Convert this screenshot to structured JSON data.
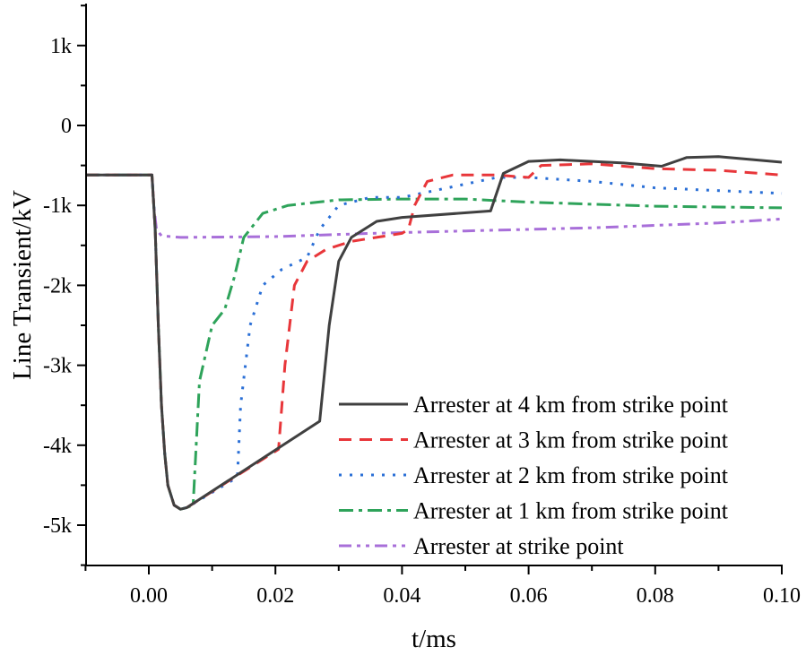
{
  "chart_data": {
    "type": "line",
    "title": "",
    "xlabel": "t/ms",
    "ylabel": "Line Transient/kV",
    "xlim": [
      -0.01,
      0.1
    ],
    "ylim": [
      -5500,
      1550
    ],
    "x_ticks": [
      0.0,
      0.02,
      0.04,
      0.06,
      0.08,
      0.1
    ],
    "x_tick_labels": [
      "0.00",
      "0.02",
      "0.04",
      "0.06",
      "0.08",
      "0.10"
    ],
    "y_ticks": [
      1000,
      0,
      -1000,
      -2000,
      -3000,
      -4000,
      -5000
    ],
    "y_tick_labels": [
      "1k",
      "0",
      "-1k",
      "-2k",
      "-3k",
      "-4k",
      "-5k"
    ],
    "grid": false,
    "legend_position": "bottom-right",
    "series": [
      {
        "name": "Arrester at 4 km from strike point",
        "color": "#404040",
        "dash": "solid",
        "points": [
          [
            -0.01,
            -620
          ],
          [
            0.0005,
            -620
          ],
          [
            0.001,
            -1300
          ],
          [
            0.0015,
            -2500
          ],
          [
            0.002,
            -3500
          ],
          [
            0.0025,
            -4100
          ],
          [
            0.003,
            -4500
          ],
          [
            0.004,
            -4750
          ],
          [
            0.005,
            -4800
          ],
          [
            0.006,
            -4780
          ],
          [
            0.027,
            -3700
          ],
          [
            0.0285,
            -2500
          ],
          [
            0.03,
            -1700
          ],
          [
            0.032,
            -1400
          ],
          [
            0.036,
            -1200
          ],
          [
            0.04,
            -1150
          ],
          [
            0.054,
            -1070
          ],
          [
            0.056,
            -600
          ],
          [
            0.06,
            -450
          ],
          [
            0.065,
            -430
          ],
          [
            0.075,
            -470
          ],
          [
            0.081,
            -510
          ],
          [
            0.085,
            -400
          ],
          [
            0.09,
            -390
          ],
          [
            0.1,
            -460
          ]
        ]
      },
      {
        "name": "Arrester at 3 km from strike point",
        "color": "#e8363a",
        "dash": "14,9",
        "points": [
          [
            -0.01,
            -620
          ],
          [
            0.0005,
            -620
          ],
          [
            0.001,
            -1300
          ],
          [
            0.0015,
            -2500
          ],
          [
            0.002,
            -3500
          ],
          [
            0.0025,
            -4100
          ],
          [
            0.003,
            -4500
          ],
          [
            0.004,
            -4750
          ],
          [
            0.005,
            -4800
          ],
          [
            0.006,
            -4780
          ],
          [
            0.0205,
            -4050
          ],
          [
            0.0215,
            -3000
          ],
          [
            0.023,
            -2000
          ],
          [
            0.025,
            -1700
          ],
          [
            0.028,
            -1550
          ],
          [
            0.032,
            -1450
          ],
          [
            0.04,
            -1350
          ],
          [
            0.041,
            -1300
          ],
          [
            0.042,
            -1000
          ],
          [
            0.044,
            -700
          ],
          [
            0.048,
            -620
          ],
          [
            0.055,
            -620
          ],
          [
            0.06,
            -650
          ],
          [
            0.062,
            -500
          ],
          [
            0.07,
            -480
          ],
          [
            0.08,
            -540
          ],
          [
            0.09,
            -560
          ],
          [
            0.1,
            -620
          ]
        ]
      },
      {
        "name": "Arrester at 2 km from strike point",
        "color": "#2a6fd6",
        "dash": "3,9",
        "points": [
          [
            -0.01,
            -620
          ],
          [
            0.0005,
            -620
          ],
          [
            0.001,
            -1300
          ],
          [
            0.0015,
            -2500
          ],
          [
            0.002,
            -3500
          ],
          [
            0.0025,
            -4100
          ],
          [
            0.003,
            -4500
          ],
          [
            0.004,
            -4750
          ],
          [
            0.005,
            -4800
          ],
          [
            0.006,
            -4780
          ],
          [
            0.014,
            -4400
          ],
          [
            0.0145,
            -3500
          ],
          [
            0.016,
            -2500
          ],
          [
            0.018,
            -2000
          ],
          [
            0.021,
            -1800
          ],
          [
            0.025,
            -1650
          ],
          [
            0.027,
            -1300
          ],
          [
            0.03,
            -1000
          ],
          [
            0.035,
            -900
          ],
          [
            0.04,
            -900
          ],
          [
            0.055,
            -650
          ],
          [
            0.06,
            -650
          ],
          [
            0.07,
            -700
          ],
          [
            0.08,
            -780
          ],
          [
            0.1,
            -850
          ]
        ]
      },
      {
        "name": "Arrester at 1 km from strike point",
        "color": "#2ea35a",
        "dash": "16,6,4,6",
        "points": [
          [
            -0.01,
            -620
          ],
          [
            0.0005,
            -620
          ],
          [
            0.001,
            -1300
          ],
          [
            0.0015,
            -2500
          ],
          [
            0.002,
            -3500
          ],
          [
            0.0025,
            -4100
          ],
          [
            0.003,
            -4500
          ],
          [
            0.004,
            -4750
          ],
          [
            0.005,
            -4800
          ],
          [
            0.006,
            -4780
          ],
          [
            0.007,
            -4750
          ],
          [
            0.008,
            -3200
          ],
          [
            0.01,
            -2500
          ],
          [
            0.012,
            -2300
          ],
          [
            0.0135,
            -1900
          ],
          [
            0.015,
            -1400
          ],
          [
            0.018,
            -1100
          ],
          [
            0.022,
            -1000
          ],
          [
            0.03,
            -930
          ],
          [
            0.04,
            -920
          ],
          [
            0.05,
            -920
          ],
          [
            0.06,
            -960
          ],
          [
            0.08,
            -1010
          ],
          [
            0.1,
            -1030
          ]
        ]
      },
      {
        "name": "Arrester at strike point",
        "color": "#a86fd9",
        "dash": "14,6,4,6,4,6",
        "points": [
          [
            -0.01,
            -620
          ],
          [
            0.0005,
            -620
          ],
          [
            0.0008,
            -1000
          ],
          [
            0.0012,
            -1300
          ],
          [
            0.002,
            -1380
          ],
          [
            0.005,
            -1400
          ],
          [
            0.02,
            -1390
          ],
          [
            0.035,
            -1350
          ],
          [
            0.05,
            -1320
          ],
          [
            0.07,
            -1280
          ],
          [
            0.09,
            -1220
          ],
          [
            0.1,
            -1170
          ]
        ]
      }
    ]
  }
}
